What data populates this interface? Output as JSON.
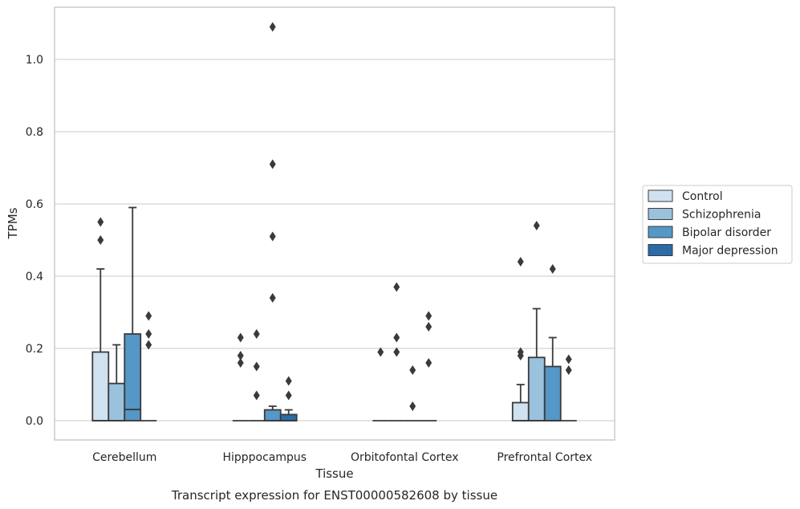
{
  "chart_data": {
    "type": "box",
    "xlabel": "Tissue",
    "ylabel": "TPMs",
    "caption": "Transcript expression for ENST00000582608 by tissue",
    "ylim": [
      -0.05,
      1.15
    ],
    "yticks": [
      0.0,
      0.2,
      0.4,
      0.6,
      0.8,
      1.0
    ],
    "ytick_labels": [
      "0.0",
      "0.2",
      "0.4",
      "0.6",
      "0.8",
      "1.0"
    ],
    "grid": "horizontal",
    "legend_position": "right",
    "categories": [
      "Cerebellum",
      "Hipppocampus",
      "Orbitofontal Cortex",
      "Prefrontal Cortex"
    ],
    "series": [
      {
        "name": "Control",
        "color": "#d0e1f0",
        "boxes": [
          {
            "q1": 0.0,
            "median": 0.0,
            "q3": 0.19,
            "whisker_low": 0.0,
            "whisker_high": 0.42,
            "outliers": [
              0.5,
              0.55
            ]
          },
          {
            "q1": 0.0,
            "median": 0.0,
            "q3": 0.0,
            "whisker_low": 0.0,
            "whisker_high": 0.0,
            "outliers": [
              0.16,
              0.18,
              0.23
            ]
          },
          {
            "q1": 0.0,
            "median": 0.0,
            "q3": 0.0,
            "whisker_low": 0.0,
            "whisker_high": 0.0,
            "outliers": [
              0.19
            ]
          },
          {
            "q1": 0.0,
            "median": 0.0,
            "q3": 0.05,
            "whisker_low": 0.0,
            "whisker_high": 0.1,
            "outliers": [
              0.18,
              0.19,
              0.44
            ]
          }
        ]
      },
      {
        "name": "Schizophrenia",
        "color": "#9ac2dd",
        "boxes": [
          {
            "q1": 0.0,
            "median": 0.0,
            "q3": 0.103,
            "whisker_low": 0.0,
            "whisker_high": 0.21,
            "outliers": []
          },
          {
            "q1": 0.0,
            "median": 0.0,
            "q3": 0.0,
            "whisker_low": 0.0,
            "whisker_high": 0.0,
            "outliers": [
              0.07,
              0.15,
              0.24
            ]
          },
          {
            "q1": 0.0,
            "median": 0.0,
            "q3": 0.0,
            "whisker_low": 0.0,
            "whisker_high": 0.0,
            "outliers": [
              0.19,
              0.23,
              0.37
            ]
          },
          {
            "q1": 0.0,
            "median": 0.0,
            "q3": 0.175,
            "whisker_low": 0.0,
            "whisker_high": 0.31,
            "outliers": [
              0.54
            ]
          }
        ]
      },
      {
        "name": "Bipolar disorder",
        "color": "#5597c6",
        "boxes": [
          {
            "q1": 0.0,
            "median": 0.031,
            "q3": 0.24,
            "whisker_low": 0.0,
            "whisker_high": 0.59,
            "outliers": []
          },
          {
            "q1": 0.0,
            "median": 0.0,
            "q3": 0.03,
            "whisker_low": 0.0,
            "whisker_high": 0.04,
            "outliers": [
              0.34,
              0.51,
              0.71,
              1.09
            ]
          },
          {
            "q1": 0.0,
            "median": 0.0,
            "q3": 0.0,
            "whisker_low": 0.0,
            "whisker_high": 0.0,
            "outliers": [
              0.04,
              0.14
            ]
          },
          {
            "q1": 0.0,
            "median": 0.0,
            "q3": 0.15,
            "whisker_low": 0.0,
            "whisker_high": 0.23,
            "outliers": [
              0.42
            ]
          }
        ]
      },
      {
        "name": "Major depression",
        "color": "#2b6ba8",
        "boxes": [
          {
            "q1": 0.0,
            "median": 0.0,
            "q3": 0.0,
            "whisker_low": 0.0,
            "whisker_high": 0.0,
            "outliers": [
              0.21,
              0.24,
              0.29
            ]
          },
          {
            "q1": 0.0,
            "median": 0.0,
            "q3": 0.017,
            "whisker_low": 0.0,
            "whisker_high": 0.03,
            "outliers": [
              0.07,
              0.11
            ]
          },
          {
            "q1": 0.0,
            "median": 0.0,
            "q3": 0.0,
            "whisker_low": 0.0,
            "whisker_high": 0.0,
            "outliers": [
              0.16,
              0.26,
              0.29
            ]
          },
          {
            "q1": 0.0,
            "median": 0.0,
            "q3": 0.0,
            "whisker_low": 0.0,
            "whisker_high": 0.0,
            "outliers": [
              0.14,
              0.17
            ]
          }
        ]
      }
    ],
    "colors": {
      "grid": "#d4d4d4",
      "frame": "#cccccc",
      "line": "#3a3a3a",
      "text": "#262626"
    }
  }
}
